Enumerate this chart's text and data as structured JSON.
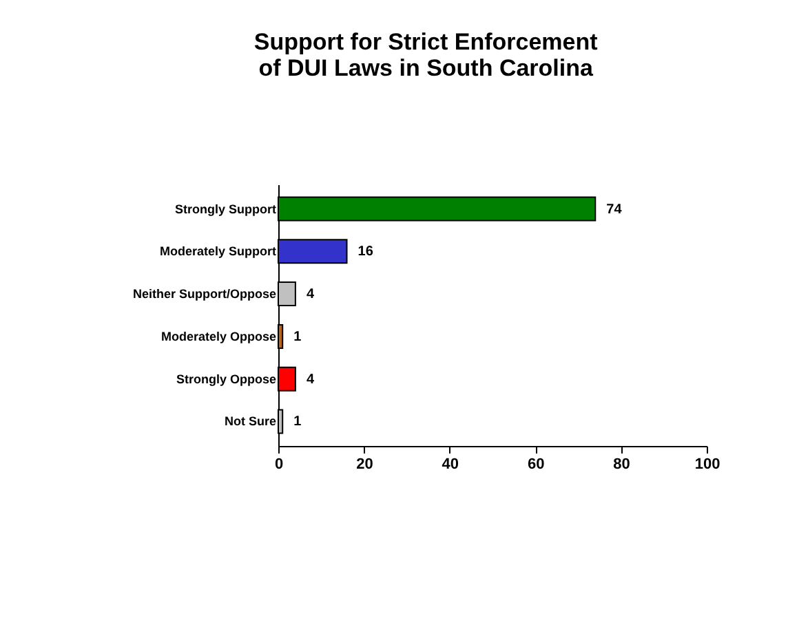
{
  "chart_data": {
    "type": "bar",
    "orientation": "horizontal",
    "title": [
      "Support for Strict Enforcement",
      "of DUI Laws in South Carolina"
    ],
    "categories": [
      "Strongly Support",
      "Moderately Support",
      "Neither Support/Oppose",
      "Moderately Oppose",
      "Strongly Oppose",
      "Not Sure"
    ],
    "values": [
      74,
      16,
      4,
      1,
      4,
      1
    ],
    "colors": [
      "#008000",
      "#3333cc",
      "#c0c0c0",
      "#b5651d",
      "#ff0000",
      "#c0c0c0"
    ],
    "xlim": [
      0,
      100
    ],
    "xticks": [
      0,
      20,
      40,
      60,
      80,
      100
    ],
    "data_labels": true,
    "grid": false
  }
}
